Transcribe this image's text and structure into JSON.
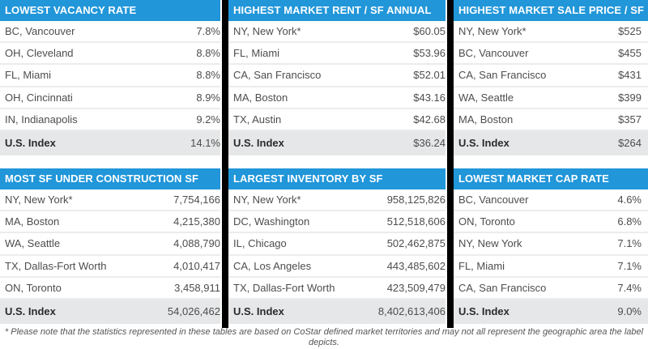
{
  "tables": [
    {
      "title": "LOWEST VACANCY RATE",
      "rows": [
        {
          "market": "BC, Vancouver",
          "value": "7.8%"
        },
        {
          "market": "OH, Cleveland",
          "value": "8.8%"
        },
        {
          "market": "FL, Miami",
          "value": "8.8%"
        },
        {
          "market": "OH, Cincinnati",
          "value": "8.9%"
        },
        {
          "market": "IN, Indianapolis",
          "value": "9.2%"
        }
      ],
      "index": {
        "label": "U.S. Index",
        "value": "14.1%"
      }
    },
    {
      "title": "HIGHEST MARKET RENT / SF  ANNUAL",
      "rows": [
        {
          "market": "NY, New York*",
          "value": "$60.05"
        },
        {
          "market": "FL, Miami",
          "value": "$53.96"
        },
        {
          "market": "CA, San Francisco",
          "value": "$52.01"
        },
        {
          "market": "MA, Boston",
          "value": "$43.16"
        },
        {
          "market": "TX, Austin",
          "value": "$42.68"
        }
      ],
      "index": {
        "label": "U.S. Index",
        "value": "$36.24"
      }
    },
    {
      "title": "HIGHEST MARKET SALE PRICE / SF",
      "rows": [
        {
          "market": "NY, New York*",
          "value": "$525"
        },
        {
          "market": "BC, Vancouver",
          "value": "$455"
        },
        {
          "market": "CA, San Francisco",
          "value": "$431"
        },
        {
          "market": "WA, Seattle",
          "value": "$399"
        },
        {
          "market": "MA, Boston",
          "value": "$357"
        }
      ],
      "index": {
        "label": "U.S. Index",
        "value": "$264"
      }
    },
    {
      "title": "MOST SF UNDER CONSTRUCTION  SF",
      "rows": [
        {
          "market": "NY, New York*",
          "value": "7,754,166"
        },
        {
          "market": "MA, Boston",
          "value": "4,215,380"
        },
        {
          "market": "WA, Seattle",
          "value": "4,088,790"
        },
        {
          "market": "TX, Dallas-Fort Worth",
          "value": "4,010,417"
        },
        {
          "market": "ON, Toronto",
          "value": "3,458,911"
        }
      ],
      "index": {
        "label": "U.S. Index",
        "value": "54,026,462"
      }
    },
    {
      "title": "LARGEST INVENTORY  BY SF",
      "rows": [
        {
          "market": "NY, New York*",
          "value": "958,125,826"
        },
        {
          "market": "DC, Washington",
          "value": "512,518,606"
        },
        {
          "market": "IL, Chicago",
          "value": "502,462,875"
        },
        {
          "market": "CA, Los Angeles",
          "value": "443,485,602"
        },
        {
          "market": "TX, Dallas-Fort Worth",
          "value": "423,509,479"
        }
      ],
      "index": {
        "label": "U.S. Index",
        "value": "8,402,613,406"
      }
    },
    {
      "title": "LOWEST MARKET CAP RATE",
      "rows": [
        {
          "market": "BC, Vancouver",
          "value": "4.6%"
        },
        {
          "market": "ON, Toronto",
          "value": "6.8%"
        },
        {
          "market": "NY, New York",
          "value": "7.1%"
        },
        {
          "market": "FL, Miami",
          "value": "7.1%"
        },
        {
          "market": "CA, San Francisco",
          "value": "7.4%"
        }
      ],
      "index": {
        "label": "U.S. Index",
        "value": "9.0%"
      }
    }
  ],
  "colors": {
    "header_bg": "#2196d9",
    "header_text": "#ffffff",
    "index_bg": "#e6e7e8",
    "divider": "#000000"
  },
  "footnote": "* Please note that the statistics represented in these tables are based on CoStar defined market territories and may not all represent the geographic area the label depicts."
}
